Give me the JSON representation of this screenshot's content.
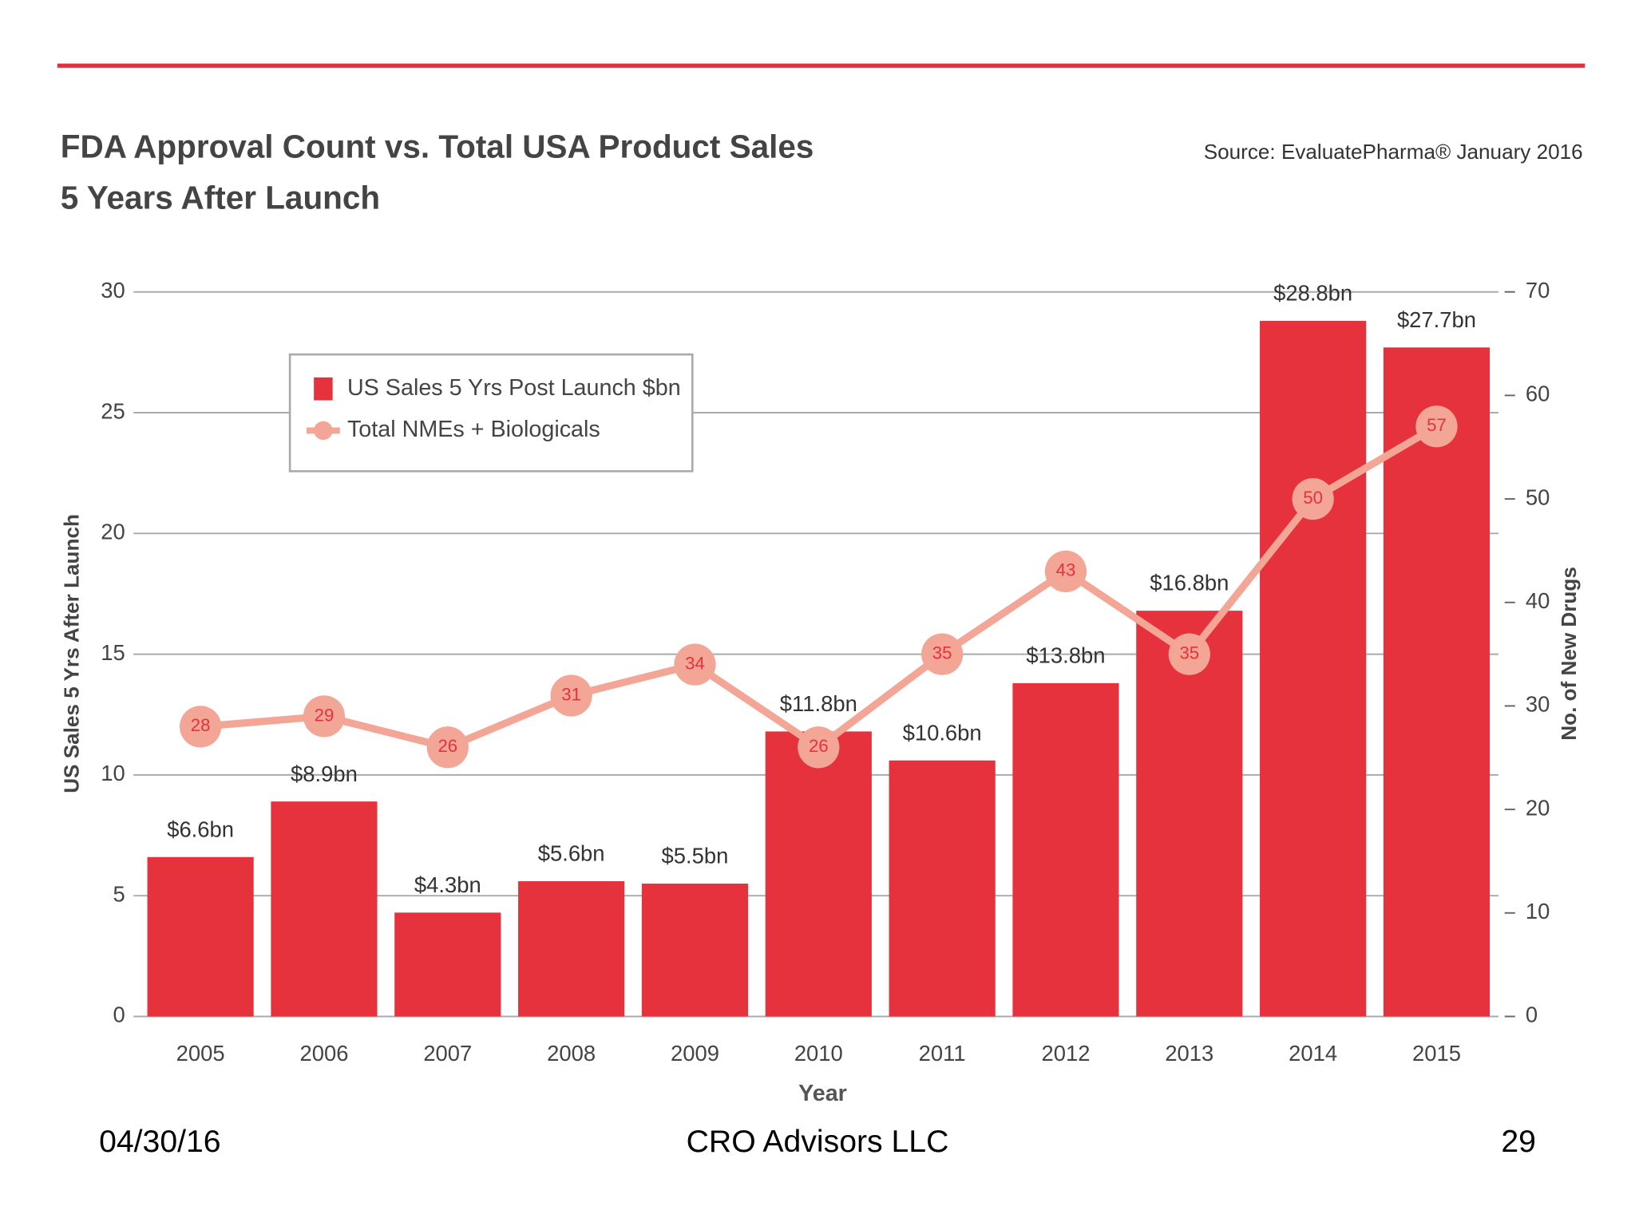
{
  "chart_data": {
    "type": "combo",
    "title": "FDA Approval Count vs. Total USA Product Sales",
    "subtitle": "5 Years After Launch",
    "source": "Source: EvaluatePharma® January 2016",
    "x_label": "Year",
    "y_label": "US Sales 5 Yrs After Launch",
    "y2_label": "No. of New Drugs",
    "categories": [
      "2005",
      "2006",
      "2007",
      "2008",
      "2009",
      "2010",
      "2011",
      "2012",
      "2013",
      "2014",
      "2015"
    ],
    "series": [
      {
        "name": "US Sales 5 Yrs Post Launch $bn",
        "type": "bar",
        "color": "#e5323d",
        "values": [
          6.6,
          8.9,
          4.3,
          5.6,
          5.5,
          11.8,
          10.6,
          13.8,
          16.8,
          28.8,
          27.7
        ],
        "value_labels": [
          "$6.6bn",
          "$8.9bn",
          "$4.3bn",
          "$5.6bn",
          "$5.5bn",
          "$11.8bn",
          "$10.6bn",
          "$13.8bn",
          "$16.8bn",
          "$28.8bn",
          "$27.7bn"
        ]
      },
      {
        "name": "Total NMEs + Biologicals",
        "type": "line",
        "axis": "y2",
        "color": "#f3a596",
        "values": [
          28,
          29,
          26,
          31,
          34,
          26,
          35,
          43,
          35,
          50,
          57
        ]
      }
    ],
    "ylim": [
      0,
      30
    ],
    "yticks": [
      0,
      5,
      10,
      15,
      20,
      25,
      30
    ],
    "y2lim": [
      0,
      70
    ],
    "y2ticks": [
      0,
      10,
      20,
      30,
      40,
      50,
      60,
      70
    ],
    "grid": true,
    "legend": "upper left"
  },
  "footer": {
    "date": "04/30/16",
    "company": "CRO Advisors LLC",
    "page": "29"
  }
}
